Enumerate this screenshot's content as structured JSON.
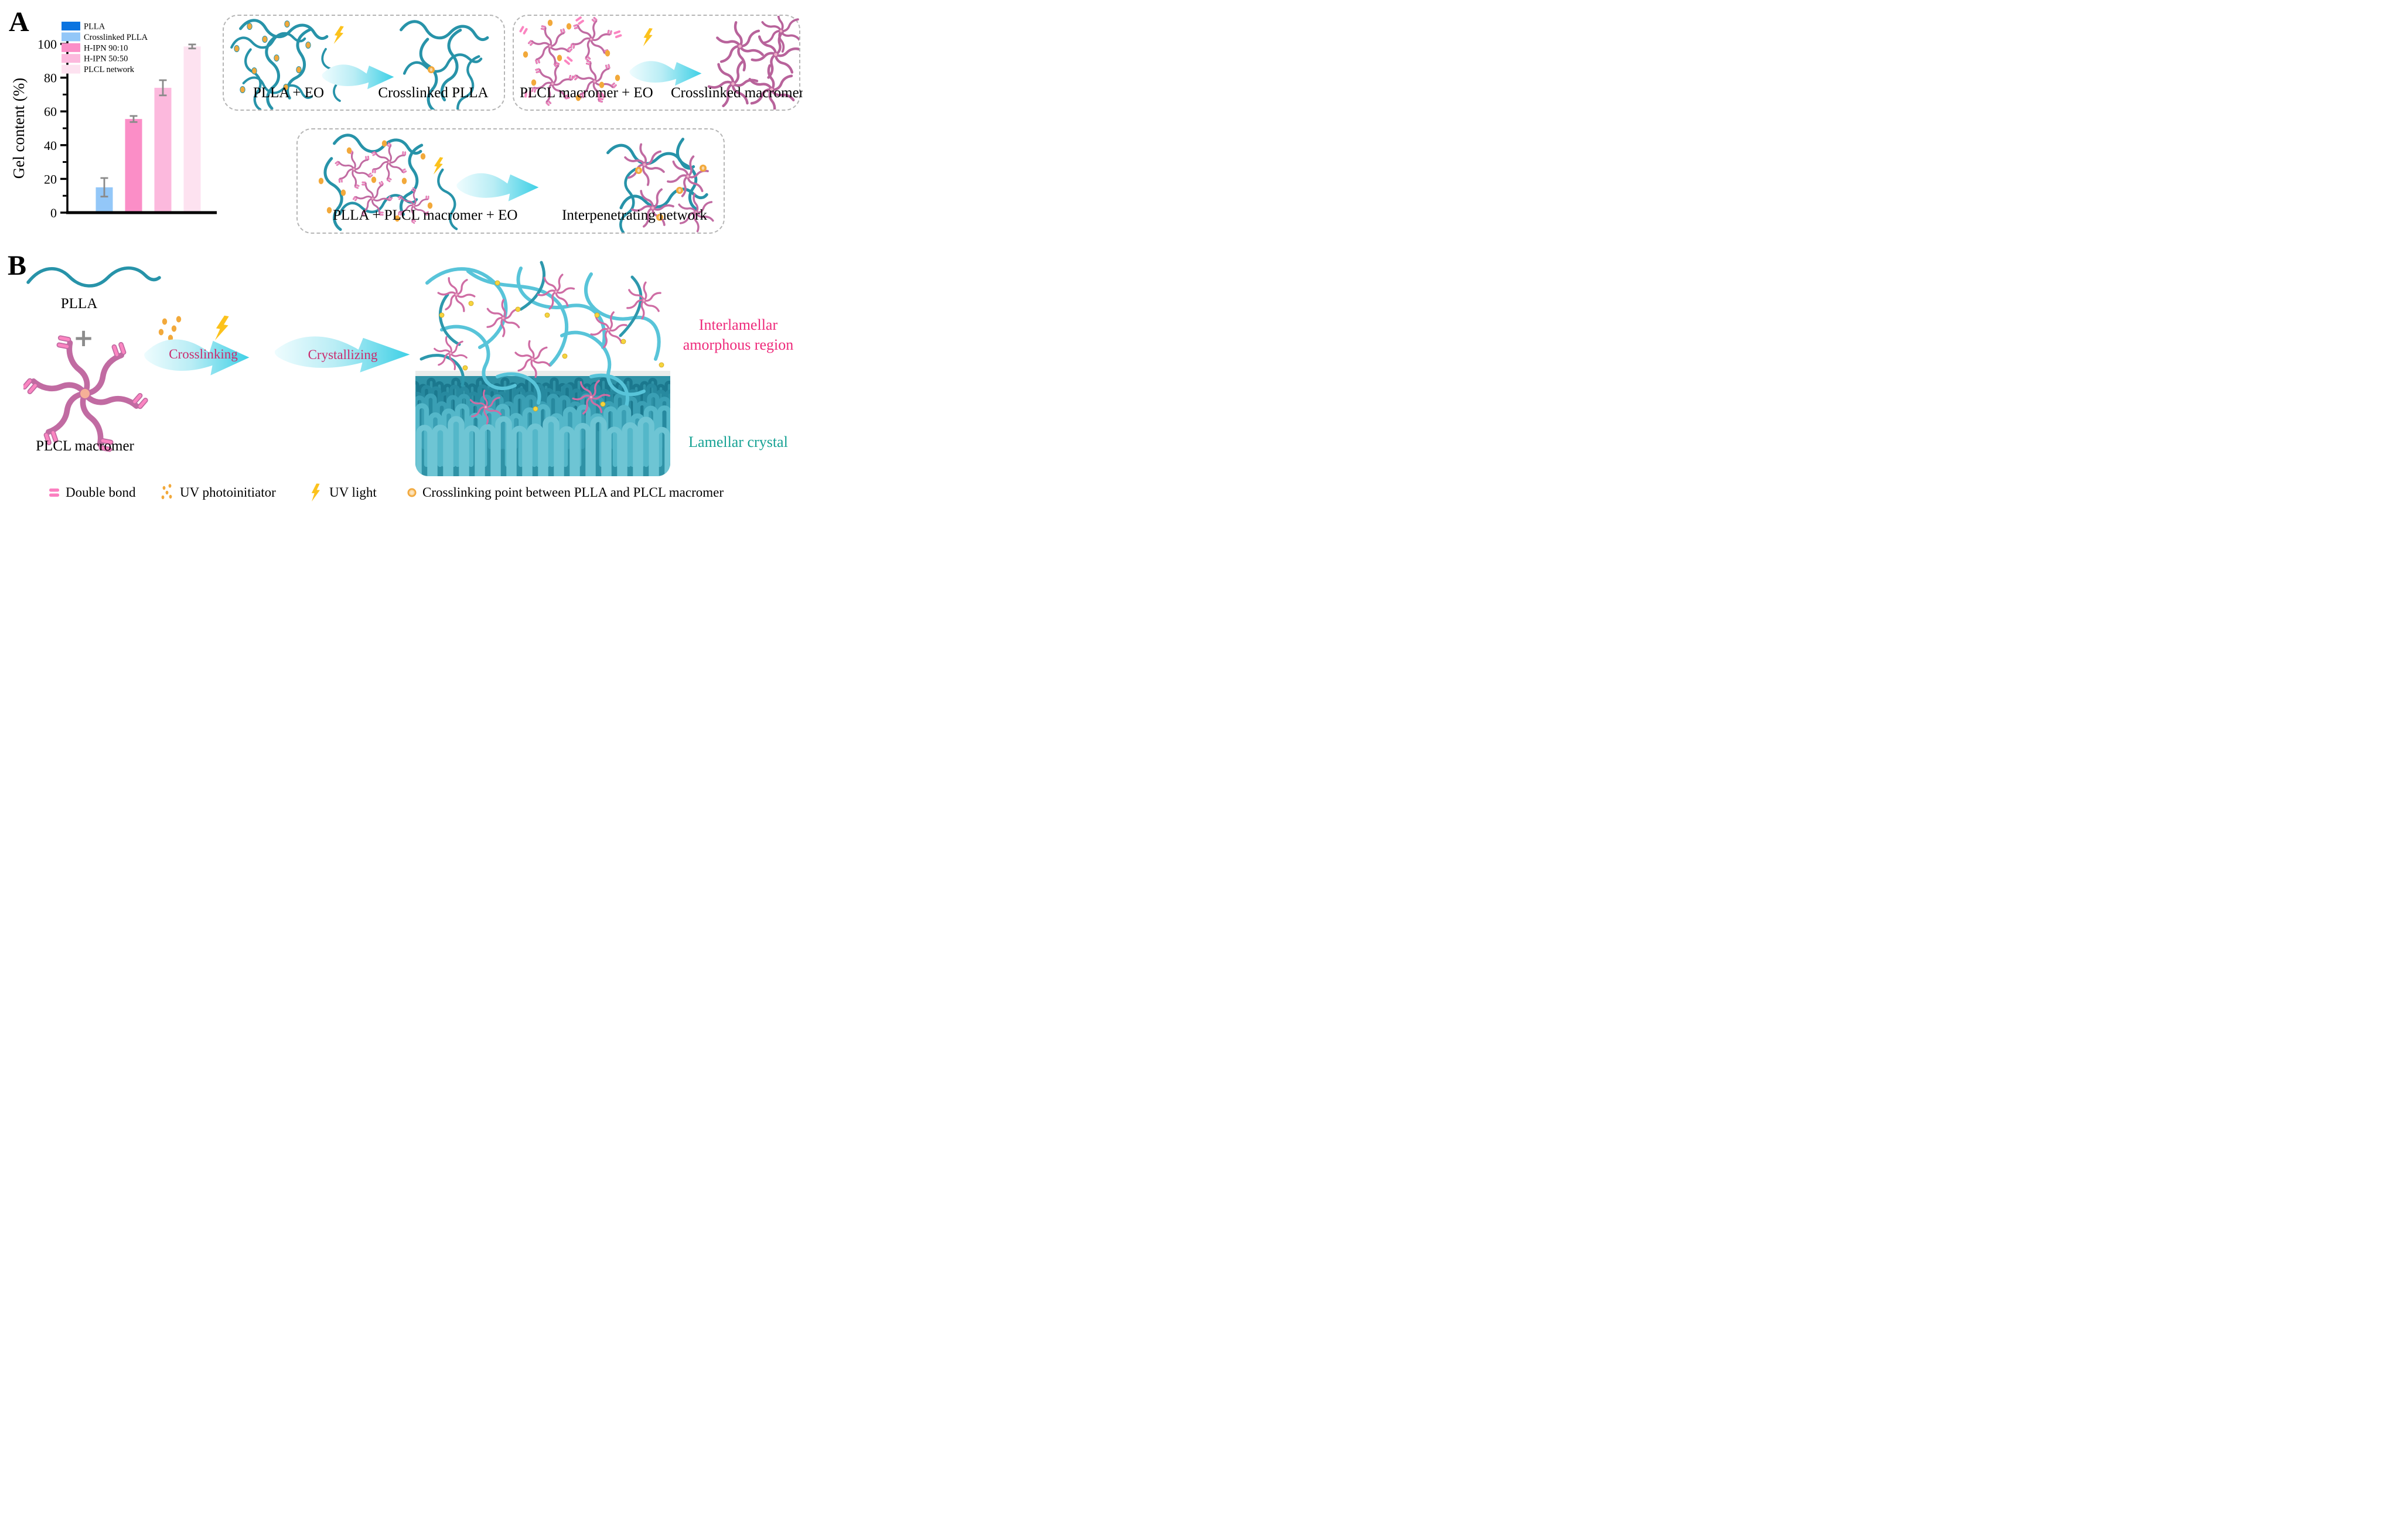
{
  "figure": {
    "panel_a_label": "A",
    "panel_b_label": "B"
  },
  "chart_data": {
    "type": "bar",
    "title": "",
    "ylabel": "Gel content (%)",
    "xlabel": "",
    "ylim": [
      0,
      100
    ],
    "yticks": [
      0,
      20,
      40,
      60,
      80,
      100
    ],
    "grid": false,
    "legend_position": "upper-left-inside",
    "categories": [
      "PLLA",
      "Crosslinked PLLA",
      "H-IPN 90:10",
      "H-IPN 50:50",
      "PLCL network"
    ],
    "values": [
      0.6,
      15,
      55.5,
      74,
      98.5
    ],
    "errors": [
      0,
      5.5,
      1.8,
      4.5,
      1.2
    ],
    "colors": [
      "#0b74e0",
      "#93c7f8",
      "#fb8ec7",
      "#fcb9dd",
      "#fde2f0"
    ],
    "error_color": "#8a8a8a"
  },
  "panel_a": {
    "box1": {
      "left_label": "PLLA + EO",
      "right_label": "Crosslinked PLLA"
    },
    "box2": {
      "left_label": "PLCL macromer + EO",
      "right_label": "Crosslinked macromer"
    },
    "box3": {
      "left_label": "PLLA + PLCL macromer + EO",
      "right_label": "Interpenetrating network"
    }
  },
  "panel_b": {
    "plla_label": "PLLA",
    "plus_sign": "+",
    "macromer_label": "PLCL macromer",
    "crosslinking_label": "Crosslinking",
    "crystallizing_label": "Crystallizing",
    "interlamellar_line1": "Interlamellar",
    "interlamellar_line2": "amorphous region",
    "lamellar_label": "Lamellar crystal"
  },
  "bottom_legend": {
    "items": [
      {
        "icon": "double-bond-icon",
        "label": "Double bond"
      },
      {
        "icon": "uv-photoinitiator-icon",
        "label": "UV photoinitiator"
      },
      {
        "icon": "uv-light-icon",
        "label": "UV light"
      },
      {
        "icon": "crosslink-point-icon",
        "label": "Crosslinking point between PLLA and PLCL macromer"
      }
    ]
  },
  "colors": {
    "plla_chain_teal": "#2793a9",
    "macromer_pink": "#c16ba2",
    "double_bond_pink": "#fb85c1",
    "photoinitiator_orange": "#f2a93b",
    "uv_bolt_gold": "#fcc21c",
    "arrow_cyan": "#3ed0e6",
    "process_label_crimson": "#cb2a6d",
    "interlamellar_pink": "#ee2a7b",
    "lamellar_teal": "#16a294",
    "crystal_base_teal": "#2f92a6"
  }
}
